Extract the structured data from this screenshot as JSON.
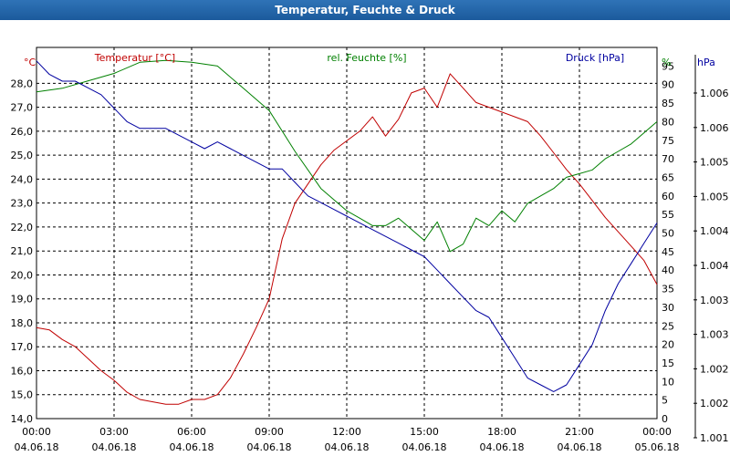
{
  "window": {
    "title": "Temperatur, Feuchte & Druck"
  },
  "chart_data": {
    "type": "line",
    "title": "Temperatur, Feuchte & Druck",
    "grid": true,
    "colors": {
      "temperature": "#c00000",
      "humidity": "#008000",
      "pressure": "#0000a0"
    },
    "x_ticks": [
      {
        "time": "00:00",
        "date": "04.06.18"
      },
      {
        "time": "03:00",
        "date": "04.06.18"
      },
      {
        "time": "06:00",
        "date": "04.06.18"
      },
      {
        "time": "09:00",
        "date": "04.06.18"
      },
      {
        "time": "12:00",
        "date": "04.06.18"
      },
      {
        "time": "15:00",
        "date": "04.06.18"
      },
      {
        "time": "18:00",
        "date": "04.06.18"
      },
      {
        "time": "21:00",
        "date": "04.06.18"
      },
      {
        "time": "00:00",
        "date": "05.06.18"
      }
    ],
    "x_range_hours": [
      0,
      24
    ],
    "axes": {
      "temperature": {
        "unit": "°C",
        "label": "Temperatur [°C]",
        "range": [
          14.0,
          29.5
        ],
        "ticks": [
          "14,0",
          "15,0",
          "16,0",
          "17,0",
          "18,0",
          "19,0",
          "20,0",
          "21,0",
          "22,0",
          "23,0",
          "24,0",
          "25,0",
          "26,0",
          "27,0",
          "28,0"
        ]
      },
      "humidity": {
        "unit": "%",
        "label": "rel. Feuchte [%]",
        "range": [
          0,
          100
        ],
        "ticks": [
          "0",
          "5",
          "10",
          "15",
          "20",
          "25",
          "30",
          "35",
          "40",
          "45",
          "50",
          "55",
          "60",
          "65",
          "70",
          "75",
          "80",
          "85",
          "90",
          "95"
        ]
      },
      "pressure": {
        "unit": "hPa",
        "label": "Druck [hPa]",
        "range": [
          1.001,
          1.0065
        ],
        "ticks": [
          "1.001",
          "1.002",
          "1.002",
          "1.003",
          "1.003",
          "1.004",
          "1.004",
          "1.005",
          "1.005",
          "1.006",
          "1.006"
        ]
      }
    },
    "series": [
      {
        "name": "Temperatur",
        "axis": "temperature",
        "points": [
          [
            0,
            17.8
          ],
          [
            0.5,
            17.7
          ],
          [
            1,
            17.3
          ],
          [
            1.5,
            17.0
          ],
          [
            2,
            16.5
          ],
          [
            2.5,
            16.0
          ],
          [
            3,
            15.6
          ],
          [
            3.5,
            15.1
          ],
          [
            4,
            14.8
          ],
          [
            4.5,
            14.7
          ],
          [
            5,
            14.6
          ],
          [
            5.5,
            14.6
          ],
          [
            6,
            14.8
          ],
          [
            6.5,
            14.8
          ],
          [
            7,
            15.0
          ],
          [
            7.5,
            15.7
          ],
          [
            8,
            16.7
          ],
          [
            8.5,
            17.8
          ],
          [
            9,
            19.0
          ],
          [
            9.5,
            21.5
          ],
          [
            10,
            23.0
          ],
          [
            10.5,
            23.8
          ],
          [
            11,
            24.6
          ],
          [
            11.5,
            25.2
          ],
          [
            12,
            25.6
          ],
          [
            12.5,
            26.0
          ],
          [
            13,
            26.6
          ],
          [
            13.5,
            25.8
          ],
          [
            14,
            26.5
          ],
          [
            14.5,
            27.6
          ],
          [
            15,
            27.8
          ],
          [
            15.5,
            27.0
          ],
          [
            16,
            28.4
          ],
          [
            16.5,
            27.8
          ],
          [
            17,
            27.2
          ],
          [
            17.5,
            27.0
          ],
          [
            18,
            26.8
          ],
          [
            18.5,
            26.6
          ],
          [
            19,
            26.4
          ],
          [
            19.5,
            25.8
          ],
          [
            20,
            25.1
          ],
          [
            20.5,
            24.4
          ],
          [
            21,
            23.8
          ],
          [
            21.5,
            23.1
          ],
          [
            22,
            22.4
          ],
          [
            22.5,
            21.8
          ],
          [
            23,
            21.2
          ],
          [
            23.5,
            20.6
          ],
          [
            24,
            19.6
          ]
        ]
      },
      {
        "name": "rel. Feuchte",
        "axis": "humidity",
        "points": [
          [
            0,
            88
          ],
          [
            1,
            89
          ],
          [
            2,
            91
          ],
          [
            3,
            93
          ],
          [
            4,
            96
          ],
          [
            5,
            96.5
          ],
          [
            6,
            96
          ],
          [
            7,
            95
          ],
          [
            8,
            89
          ],
          [
            9,
            83
          ],
          [
            10,
            72
          ],
          [
            11,
            62
          ],
          [
            12,
            56
          ],
          [
            12.5,
            54
          ],
          [
            13,
            52
          ],
          [
            13.5,
            52
          ],
          [
            14,
            54
          ],
          [
            14.5,
            51
          ],
          [
            15,
            48
          ],
          [
            15.5,
            53
          ],
          [
            16,
            45
          ],
          [
            16.5,
            47
          ],
          [
            17,
            54
          ],
          [
            17.5,
            52
          ],
          [
            18,
            56
          ],
          [
            18.5,
            53
          ],
          [
            19,
            58
          ],
          [
            19.5,
            60
          ],
          [
            20,
            62
          ],
          [
            20.5,
            65
          ],
          [
            21,
            66
          ],
          [
            21.5,
            67
          ],
          [
            22,
            70
          ],
          [
            22.5,
            72
          ],
          [
            23,
            74
          ],
          [
            23.5,
            77
          ],
          [
            24,
            80
          ]
        ]
      },
      {
        "name": "Druck",
        "axis": "pressure",
        "points": [
          [
            0,
            1.0063
          ],
          [
            0.5,
            1.0061
          ],
          [
            1,
            1.006
          ],
          [
            1.5,
            1.006
          ],
          [
            2,
            1.0059
          ],
          [
            2.5,
            1.0058
          ],
          [
            3,
            1.0056
          ],
          [
            3.5,
            1.0054
          ],
          [
            4,
            1.0053
          ],
          [
            4.5,
            1.0053
          ],
          [
            5,
            1.0053
          ],
          [
            5.5,
            1.0052
          ],
          [
            6,
            1.0051
          ],
          [
            6.5,
            1.005
          ],
          [
            7,
            1.0051
          ],
          [
            7.5,
            1.005
          ],
          [
            8,
            1.0049
          ],
          [
            8.5,
            1.0048
          ],
          [
            9,
            1.0047
          ],
          [
            9.5,
            1.0047
          ],
          [
            10,
            1.0045
          ],
          [
            10.5,
            1.0043
          ],
          [
            11,
            1.0042
          ],
          [
            11.5,
            1.0041
          ],
          [
            12,
            1.004
          ],
          [
            12.5,
            1.0039
          ],
          [
            13,
            1.0038
          ],
          [
            13.5,
            1.0037
          ],
          [
            14,
            1.0036
          ],
          [
            14.5,
            1.0035
          ],
          [
            15,
            1.0034
          ],
          [
            15.5,
            1.0032
          ],
          [
            16,
            1.003
          ],
          [
            16.5,
            1.0028
          ],
          [
            17,
            1.0026
          ],
          [
            17.5,
            1.0025
          ],
          [
            18,
            1.0022
          ],
          [
            18.5,
            1.0019
          ],
          [
            19,
            1.0016
          ],
          [
            19.5,
            1.0015
          ],
          [
            20,
            1.0014
          ],
          [
            20.5,
            1.0015
          ],
          [
            21,
            1.0018
          ],
          [
            21.5,
            1.0021
          ],
          [
            22,
            1.0026
          ],
          [
            22.5,
            1.003
          ],
          [
            23,
            1.0033
          ],
          [
            23.5,
            1.0036
          ],
          [
            24,
            1.0039
          ]
        ]
      }
    ]
  }
}
